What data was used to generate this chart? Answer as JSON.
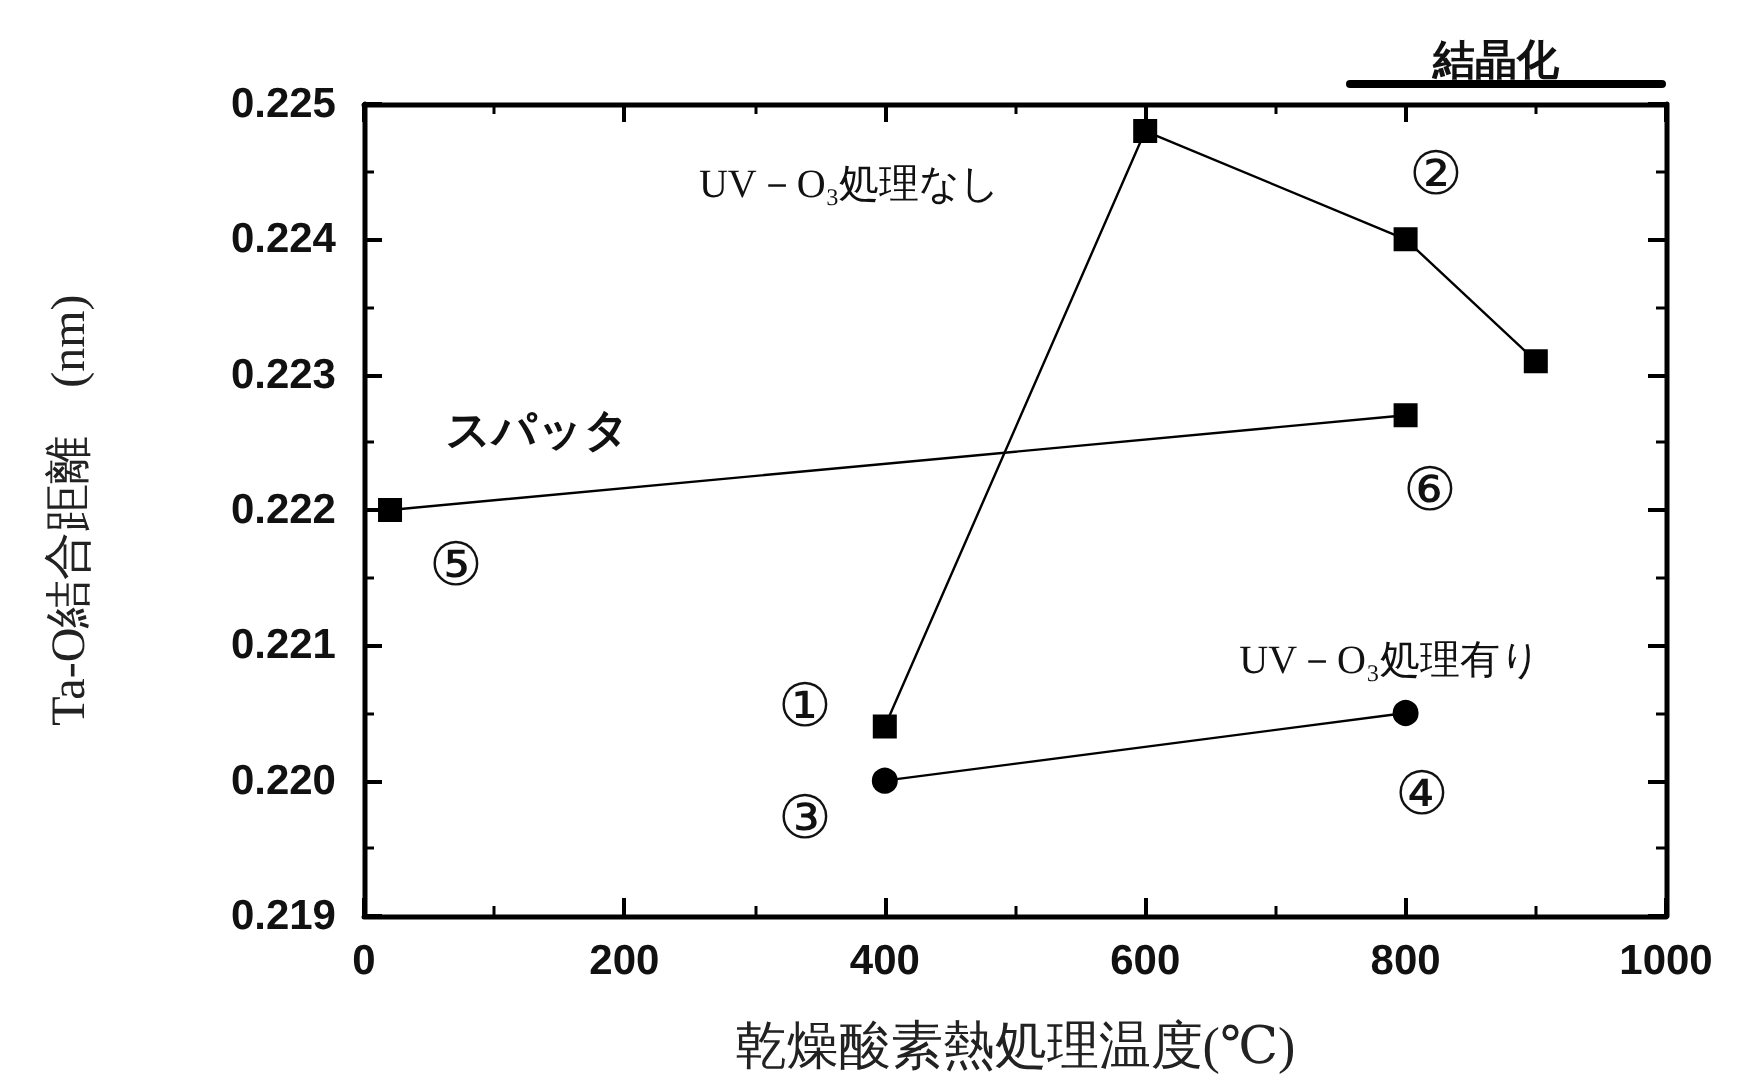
{
  "chart_data": {
    "type": "line",
    "xlabel": "乾燥酸素熱処理温度(℃)",
    "ylabel": "Ta-O結合距離　(nm)",
    "series": [
      {
        "name": "UV－O₃処理なし",
        "color": "#000000",
        "marker": "square",
        "x": [
          400,
          600,
          800,
          900
        ],
        "values": [
          0.2204,
          0.2248,
          0.224,
          0.2231
        ]
      },
      {
        "name": "スパッタ",
        "color": "#000000",
        "marker": "square",
        "x": [
          20,
          800
        ],
        "values": [
          0.222,
          0.2227
        ]
      },
      {
        "name": "UV－O₃処理有り",
        "color": "#000000",
        "marker": "circle",
        "x": [
          400,
          800
        ],
        "values": [
          0.22,
          0.2205
        ]
      }
    ],
    "xlim": [
      0,
      1000
    ],
    "xticks": [
      0,
      200,
      400,
      600,
      800,
      1000
    ],
    "ylim": [
      0.219,
      0.225
    ],
    "yticks": [
      0.219,
      {
        "value": 0.22,
        "label": "0.220"
      },
      0.221,
      0.222,
      0.223,
      0.224,
      0.225
    ],
    "annotations": [
      "結晶化",
      {
        "text": "①",
        "x": 400,
        "y": 0.2204
      },
      {
        "text": "②",
        "x": 800,
        "y": 0.224
      },
      {
        "text": "③",
        "x": 400,
        "y": 0.22
      },
      {
        "text": "④",
        "x": 800,
        "y": 0.2205
      },
      {
        "text": "⑤",
        "x": 20,
        "y": 0.222
      },
      {
        "text": "⑥",
        "x": 800,
        "y": 0.2227
      }
    ]
  }
}
